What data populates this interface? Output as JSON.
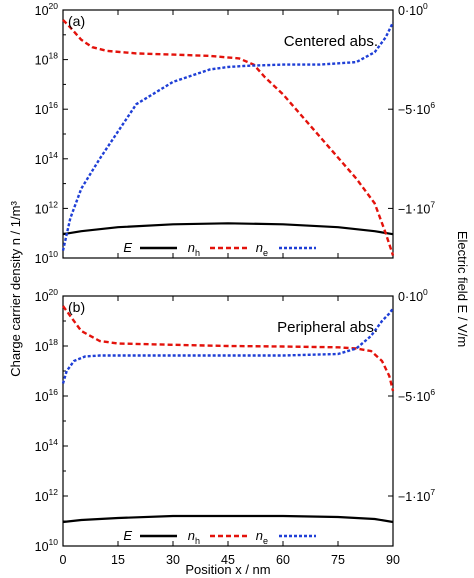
{
  "figure": {
    "y_left_label": "Charge carrier density n / 1/m³",
    "y_right_label": "Electric field E / V/m",
    "x_label": "Position x / nm"
  },
  "chart_data": [
    {
      "type": "line",
      "panel_label": "(a)",
      "title": "Centered abs.",
      "xlabel": "Position x / nm",
      "ylabel": "Charge carrier density n / 1/m³",
      "y2label": "Electric field E / V/m",
      "xlim": [
        0,
        90
      ],
      "ylim_log10": [
        10,
        20
      ],
      "y2lim": [
        -12500000.0,
        0
      ],
      "x_ticks": [
        "0",
        "15",
        "30",
        "45",
        "60",
        "75",
        "90"
      ],
      "y_ticks": [
        {
          "base": "10",
          "exp": "10"
        },
        {
          "base": "10",
          "exp": "12"
        },
        {
          "base": "10",
          "exp": "14"
        },
        {
          "base": "10",
          "exp": "16"
        },
        {
          "base": "10",
          "exp": "18"
        },
        {
          "base": "10",
          "exp": "20"
        }
      ],
      "y2_ticks": [
        {
          "label": "0·10",
          "exp": "0",
          "value": 0
        },
        {
          "label": "−5·10",
          "exp": "6",
          "value": -5000000
        },
        {
          "label": "−1·10",
          "exp": "7",
          "value": -10000000
        }
      ],
      "legend": [
        {
          "main": "E",
          "sub": "",
          "color": "#000000",
          "dash": ""
        },
        {
          "main": "n",
          "sub": "h",
          "color": "#e3120b",
          "dash": "5,3"
        },
        {
          "main": "n",
          "sub": "e",
          "color": "#1f3fd6",
          "dash": "3,2"
        }
      ],
      "series": [
        {
          "name": "E",
          "axis": "right",
          "color": "#000000",
          "x": [
            0,
            5,
            15,
            30,
            45,
            60,
            75,
            85,
            90
          ],
          "y": [
            -11300000,
            -11150000,
            -10950000,
            -10800000,
            -10750000,
            -10800000,
            -10950000,
            -11150000,
            -11300000
          ]
        },
        {
          "name": "nh",
          "axis": "left",
          "color": "#e3120b",
          "x": [
            0,
            2,
            5,
            8,
            12,
            20,
            30,
            40,
            48,
            52,
            55,
            60,
            70,
            80,
            85,
            88,
            90
          ],
          "y": [
            19.6,
            19.3,
            18.8,
            18.5,
            18.35,
            18.25,
            18.2,
            18.15,
            18.05,
            17.8,
            17.3,
            16.6,
            14.9,
            13.2,
            12.2,
            11.0,
            10.1
          ]
        },
        {
          "name": "ne",
          "axis": "left",
          "color": "#1f3fd6",
          "x": [
            0,
            2,
            5,
            10,
            15,
            20,
            30,
            40,
            45,
            50,
            60,
            70,
            80,
            85,
            88,
            90
          ],
          "y": [
            10.3,
            11.6,
            12.8,
            14.0,
            15.1,
            16.2,
            17.1,
            17.6,
            17.7,
            17.75,
            17.8,
            17.8,
            17.9,
            18.3,
            18.9,
            19.5
          ]
        }
      ]
    },
    {
      "type": "line",
      "panel_label": "(b)",
      "title": "Peripheral abs.",
      "xlabel": "Position x / nm",
      "ylabel": "Charge carrier density n / 1/m³",
      "y2label": "Electric field E / V/m",
      "xlim": [
        0,
        90
      ],
      "ylim_log10": [
        10,
        20
      ],
      "y2lim": [
        -12500000.0,
        0
      ],
      "x_ticks": [
        "0",
        "15",
        "30",
        "45",
        "60",
        "75",
        "90"
      ],
      "y_ticks": [
        {
          "base": "10",
          "exp": "10"
        },
        {
          "base": "10",
          "exp": "12"
        },
        {
          "base": "10",
          "exp": "14"
        },
        {
          "base": "10",
          "exp": "16"
        },
        {
          "base": "10",
          "exp": "18"
        },
        {
          "base": "10",
          "exp": "20"
        }
      ],
      "y2_ticks": [
        {
          "label": "0·10",
          "exp": "0",
          "value": 0
        },
        {
          "label": "−5·10",
          "exp": "6",
          "value": -5000000
        },
        {
          "label": "−1·10",
          "exp": "7",
          "value": -10000000
        }
      ],
      "legend": [
        {
          "main": "E",
          "sub": "",
          "color": "#000000",
          "dash": ""
        },
        {
          "main": "n",
          "sub": "h",
          "color": "#e3120b",
          "dash": "5,3"
        },
        {
          "main": "n",
          "sub": "e",
          "color": "#1f3fd6",
          "dash": "3,2"
        }
      ],
      "series": [
        {
          "name": "E",
          "axis": "right",
          "color": "#000000",
          "x": [
            0,
            5,
            15,
            30,
            45,
            60,
            75,
            85,
            90
          ],
          "y": [
            -11300000,
            -11200000,
            -11100000,
            -11000000,
            -11000000,
            -11000000,
            -11050000,
            -11150000,
            -11300000
          ]
        },
        {
          "name": "nh",
          "axis": "left",
          "color": "#e3120b",
          "x": [
            0,
            2,
            5,
            10,
            15,
            30,
            45,
            60,
            75,
            80,
            84,
            87,
            89,
            90
          ],
          "y": [
            19.6,
            19.2,
            18.6,
            18.2,
            18.1,
            18.05,
            18.0,
            17.98,
            17.95,
            17.9,
            17.8,
            17.4,
            16.8,
            16.2
          ]
        },
        {
          "name": "ne",
          "axis": "left",
          "color": "#1f3fd6",
          "x": [
            0,
            1,
            3,
            6,
            10,
            20,
            30,
            45,
            60,
            75,
            80,
            84,
            87,
            89,
            90
          ],
          "y": [
            16.5,
            17.0,
            17.4,
            17.58,
            17.62,
            17.62,
            17.62,
            17.62,
            17.62,
            17.68,
            17.9,
            18.4,
            19.0,
            19.3,
            19.5
          ]
        }
      ]
    }
  ]
}
